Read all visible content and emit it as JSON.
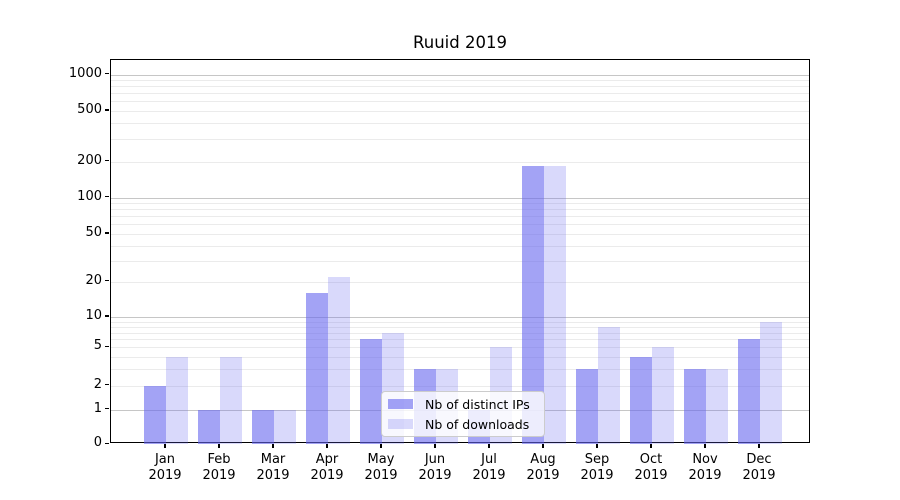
{
  "chart_data": {
    "type": "bar",
    "title": "Ruuid 2019",
    "categories": [
      "Jan",
      "Feb",
      "Mar",
      "Apr",
      "May",
      "Jun",
      "Jul",
      "Aug",
      "Sep",
      "Oct",
      "Nov",
      "Dec"
    ],
    "category_year": "2019",
    "series": [
      {
        "name": "Nb of distinct IPs",
        "values": [
          2,
          1,
          1,
          16,
          6,
          3,
          1,
          185,
          3,
          4,
          3,
          6
        ],
        "color": "rgba(102,102,238,0.6)"
      },
      {
        "name": "Nb of downloads",
        "values": [
          4,
          4,
          1,
          22,
          7,
          3,
          5,
          185,
          8,
          5,
          3,
          9
        ],
        "color": "rgba(102,102,238,0.25)"
      }
    ],
    "yticks": [
      "0",
      "1",
      "2",
      "5",
      "10",
      "20",
      "50",
      "100",
      "200",
      "500",
      "1000"
    ],
    "scale": "symlog",
    "ylim": [
      0,
      1000
    ],
    "grid": "major and minor horizontal gridlines",
    "legend_position": "lower center, inside plot",
    "accent_color": "#6666ee",
    "major_grid_color": "#c6c6c6",
    "minor_grid_color": "#ebebeb"
  }
}
